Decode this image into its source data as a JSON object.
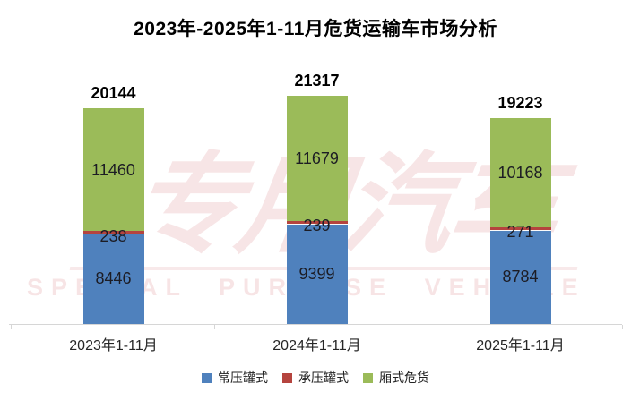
{
  "title": "2023年-2025年1-11月危货运输车市场分析",
  "watermark": {
    "cn": "专用汽车",
    "en": "SPECIAL PURPOSE VEHICLE"
  },
  "chart_data": {
    "type": "bar",
    "stacked": true,
    "title": "2023年-2025年1-11月危货运输车市场分析",
    "categories": [
      "2023年1-11月",
      "2024年1-11月",
      "2025年1-11月"
    ],
    "series": [
      {
        "name": "常压罐式",
        "color": "#4f81bd",
        "values": [
          8446,
          9399,
          8784
        ]
      },
      {
        "name": "承压罐式",
        "color": "#b5443e",
        "values": [
          238,
          239,
          271
        ]
      },
      {
        "name": "厢式危货",
        "color": "#9bbb59",
        "values": [
          11460,
          11679,
          10168
        ]
      }
    ],
    "totals": [
      20144,
      21317,
      19223
    ],
    "value_labels": true,
    "legend_position": "bottom",
    "grid": false,
    "ylim": [
      0,
      21400
    ]
  }
}
